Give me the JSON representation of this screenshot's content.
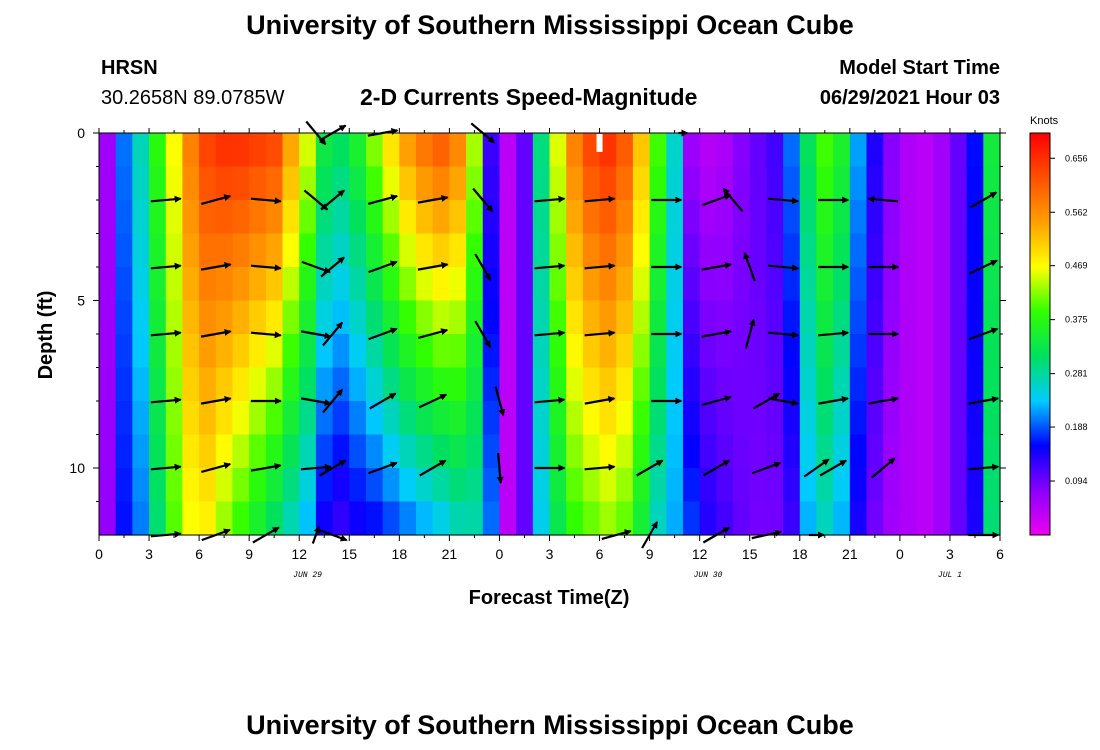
{
  "header": {
    "title": "University of Southern Mississippi Ocean Cube",
    "station": "HRSN",
    "coords": "30.2658N  89.0785W",
    "subtitle": "2-D Currents Speed-Magnitude",
    "model_label": "Model Start Time",
    "model_time": "06/29/2021 Hour 03"
  },
  "footer": {
    "title": "University of Southern Mississippi Ocean Cube"
  },
  "colors": {
    "colormap": [
      "#ee00ee",
      "#8a00ff",
      "#0000ff",
      "#00ccff",
      "#00e060",
      "#30ff00",
      "#ffff00",
      "#ffa000",
      "#ff5000",
      "#ff0000"
    ],
    "arrow": "#000000",
    "marker": "#ffffff"
  },
  "chart_data": {
    "type": "heatmap",
    "title": "2-D Currents Speed-Magnitude",
    "xlabel": "Forecast Time(Z)",
    "ylabel": "Depth (ft)",
    "xlim": [
      0,
      54
    ],
    "ylim": [
      0,
      12
    ],
    "x_ticks": [
      0,
      3,
      6,
      9,
      12,
      15,
      18,
      21,
      24,
      27,
      30,
      33,
      36,
      39,
      42,
      45,
      48,
      51,
      54
    ],
    "x_tick_labels": [
      "0",
      "3",
      "6",
      "9",
      "12",
      "15",
      "18",
      "21",
      "0",
      "3",
      "6",
      "9",
      "12",
      "15",
      "18",
      "21",
      "0",
      "3",
      "6"
    ],
    "y_ticks": [
      0,
      5,
      10
    ],
    "y_tick_labels": [
      "0",
      "5",
      "10"
    ],
    "date_labels": [
      {
        "x": 12.5,
        "label": "JUN 29"
      },
      {
        "x": 36.5,
        "label": "JUN 30"
      },
      {
        "x": 51,
        "label": "JUL 1"
      }
    ],
    "colorbar": {
      "unit": "Knots",
      "ticks": [
        0.656,
        0.562,
        0.469,
        0.375,
        0.281,
        0.188,
        0.094
      ],
      "vmin": 0.0,
      "vmax": 0.7
    },
    "speed_grid": {
      "time_step": 1,
      "depth_step": 1,
      "profiles": [
        {
          "t": 0,
          "top": 0.06,
          "bottom": 0.07
        },
        {
          "t": 1,
          "top": 0.2,
          "bottom": 0.16
        },
        {
          "t": 2,
          "top": 0.27,
          "bottom": 0.2
        },
        {
          "t": 3,
          "top": 0.38,
          "bottom": 0.3
        },
        {
          "t": 4,
          "top": 0.47,
          "bottom": 0.4
        },
        {
          "t": 5,
          "top": 0.58,
          "bottom": 0.46
        },
        {
          "t": 6,
          "top": 0.64,
          "bottom": 0.47
        },
        {
          "t": 7,
          "top": 0.66,
          "bottom": 0.42
        },
        {
          "t": 8,
          "top": 0.66,
          "bottom": 0.38
        },
        {
          "t": 9,
          "top": 0.65,
          "bottom": 0.34
        },
        {
          "t": 10,
          "top": 0.64,
          "bottom": 0.3
        },
        {
          "t": 11,
          "top": 0.55,
          "bottom": 0.26
        },
        {
          "t": 12,
          "top": 0.46,
          "bottom": 0.22
        },
        {
          "t": 13,
          "top": 0.34,
          "bottom": 0.14
        },
        {
          "t": 14,
          "top": 0.32,
          "bottom": 0.12
        },
        {
          "t": 15,
          "top": 0.36,
          "bottom": 0.14
        },
        {
          "t": 16,
          "top": 0.43,
          "bottom": 0.15
        },
        {
          "t": 17,
          "top": 0.5,
          "bottom": 0.17
        },
        {
          "t": 18,
          "top": 0.56,
          "bottom": 0.19
        },
        {
          "t": 19,
          "top": 0.6,
          "bottom": 0.21
        },
        {
          "t": 20,
          "top": 0.62,
          "bottom": 0.23
        },
        {
          "t": 21,
          "top": 0.58,
          "bottom": 0.26
        },
        {
          "t": 22,
          "top": 0.44,
          "bottom": 0.27
        },
        {
          "t": 23,
          "top": 0.12,
          "bottom": 0.2
        },
        {
          "t": 24,
          "top": 0.04,
          "bottom": 0.04
        },
        {
          "t": 25,
          "top": 0.1,
          "bottom": 0.1
        },
        {
          "t": 26,
          "top": 0.3,
          "bottom": 0.24
        },
        {
          "t": 27,
          "top": 0.46,
          "bottom": 0.32
        },
        {
          "t": 28,
          "top": 0.58,
          "bottom": 0.38
        },
        {
          "t": 29,
          "top": 0.64,
          "bottom": 0.4
        },
        {
          "t": 30,
          "top": 0.66,
          "bottom": 0.42
        },
        {
          "t": 31,
          "top": 0.62,
          "bottom": 0.4
        },
        {
          "t": 32,
          "top": 0.52,
          "bottom": 0.34
        },
        {
          "t": 33,
          "top": 0.4,
          "bottom": 0.26
        },
        {
          "t": 34,
          "top": 0.26,
          "bottom": 0.22
        },
        {
          "t": 35,
          "top": 0.06,
          "bottom": 0.18
        },
        {
          "t": 36,
          "top": 0.04,
          "bottom": 0.14
        },
        {
          "t": 37,
          "top": 0.05,
          "bottom": 0.12
        },
        {
          "t": 38,
          "top": 0.08,
          "bottom": 0.1
        },
        {
          "t": 39,
          "top": 0.1,
          "bottom": 0.09
        },
        {
          "t": 40,
          "top": 0.12,
          "bottom": 0.09
        },
        {
          "t": 41,
          "top": 0.2,
          "bottom": 0.12
        },
        {
          "t": 42,
          "top": 0.32,
          "bottom": 0.22
        },
        {
          "t": 43,
          "top": 0.4,
          "bottom": 0.26
        },
        {
          "t": 44,
          "top": 0.36,
          "bottom": 0.22
        },
        {
          "t": 45,
          "top": 0.22,
          "bottom": 0.14
        },
        {
          "t": 46,
          "top": 0.14,
          "bottom": 0.09
        },
        {
          "t": 47,
          "top": 0.08,
          "bottom": 0.06
        },
        {
          "t": 48,
          "top": 0.05,
          "bottom": 0.05
        },
        {
          "t": 49,
          "top": 0.04,
          "bottom": 0.04
        },
        {
          "t": 50,
          "top": 0.06,
          "bottom": 0.06
        },
        {
          "t": 51,
          "top": 0.1,
          "bottom": 0.1
        },
        {
          "t": 52,
          "top": 0.16,
          "bottom": 0.14
        },
        {
          "t": 53,
          "top": 0.34,
          "bottom": 0.3
        }
      ]
    },
    "vectors": [
      {
        "t": 4,
        "d": 12,
        "dir": 5,
        "mag": 1
      },
      {
        "t": 7,
        "d": 12,
        "dir": 20,
        "mag": 1
      },
      {
        "t": 10,
        "d": 12,
        "dir": 30,
        "mag": 1
      },
      {
        "t": 13,
        "d": 12,
        "dir": 70,
        "mag": 0.6
      },
      {
        "t": 14,
        "d": 12,
        "dir": -20,
        "mag": 1
      },
      {
        "t": 31,
        "d": 12,
        "dir": 15,
        "mag": 1
      },
      {
        "t": 33,
        "d": 12,
        "dir": 60,
        "mag": 1
      },
      {
        "t": 37,
        "d": 12,
        "dir": 30,
        "mag": 1
      },
      {
        "t": 40,
        "d": 12,
        "dir": 12,
        "mag": 1
      },
      {
        "t": 43,
        "d": 12,
        "dir": 0,
        "mag": 0.5
      },
      {
        "t": 53,
        "d": 12,
        "dir": 0,
        "mag": 1
      },
      {
        "t": 4,
        "d": 10,
        "dir": 5,
        "mag": 1
      },
      {
        "t": 7,
        "d": 10,
        "dir": 15,
        "mag": 1
      },
      {
        "t": 10,
        "d": 10,
        "dir": 10,
        "mag": 1
      },
      {
        "t": 13,
        "d": 10,
        "dir": 5,
        "mag": 1
      },
      {
        "t": 14,
        "d": 10,
        "dir": 30,
        "mag": 1
      },
      {
        "t": 17,
        "d": 10,
        "dir": 20,
        "mag": 1
      },
      {
        "t": 20,
        "d": 10,
        "dir": 30,
        "mag": 1
      },
      {
        "t": 24,
        "d": 10,
        "dir": -85,
        "mag": 1
      },
      {
        "t": 27,
        "d": 10,
        "dir": 0,
        "mag": 1
      },
      {
        "t": 30,
        "d": 10,
        "dir": 5,
        "mag": 1
      },
      {
        "t": 33,
        "d": 10,
        "dir": 30,
        "mag": 1
      },
      {
        "t": 37,
        "d": 10,
        "dir": 30,
        "mag": 1
      },
      {
        "t": 40,
        "d": 10,
        "dir": 20,
        "mag": 1
      },
      {
        "t": 43,
        "d": 10,
        "dir": 35,
        "mag": 1
      },
      {
        "t": 44,
        "d": 10,
        "dir": 30,
        "mag": 1
      },
      {
        "t": 47,
        "d": 10,
        "dir": 40,
        "mag": 1
      },
      {
        "t": 53,
        "d": 10,
        "dir": 5,
        "mag": 1
      },
      {
        "t": 4,
        "d": 8,
        "dir": 5,
        "mag": 1
      },
      {
        "t": 7,
        "d": 8,
        "dir": 10,
        "mag": 1
      },
      {
        "t": 10,
        "d": 8,
        "dir": 0,
        "mag": 1
      },
      {
        "t": 13,
        "d": 8,
        "dir": -10,
        "mag": 1
      },
      {
        "t": 14,
        "d": 8,
        "dir": 50,
        "mag": 1
      },
      {
        "t": 17,
        "d": 8,
        "dir": 30,
        "mag": 1
      },
      {
        "t": 20,
        "d": 8,
        "dir": 25,
        "mag": 1
      },
      {
        "t": 24,
        "d": 8,
        "dir": -75,
        "mag": 1
      },
      {
        "t": 27,
        "d": 8,
        "dir": 5,
        "mag": 1
      },
      {
        "t": 30,
        "d": 8,
        "dir": 10,
        "mag": 1
      },
      {
        "t": 34,
        "d": 8,
        "dir": 0,
        "mag": 1
      },
      {
        "t": 37,
        "d": 8,
        "dir": 15,
        "mag": 1
      },
      {
        "t": 40,
        "d": 8,
        "dir": 30,
        "mag": 1
      },
      {
        "t": 41,
        "d": 8,
        "dir": -10,
        "mag": 1
      },
      {
        "t": 44,
        "d": 8,
        "dir": 10,
        "mag": 1
      },
      {
        "t": 47,
        "d": 8,
        "dir": 10,
        "mag": 1
      },
      {
        "t": 53,
        "d": 8,
        "dir": 10,
        "mag": 1
      },
      {
        "t": 4,
        "d": 6,
        "dir": 5,
        "mag": 1
      },
      {
        "t": 7,
        "d": 6,
        "dir": 10,
        "mag": 1
      },
      {
        "t": 10,
        "d": 6,
        "dir": -5,
        "mag": 1
      },
      {
        "t": 13,
        "d": 6,
        "dir": -10,
        "mag": 1
      },
      {
        "t": 14,
        "d": 6,
        "dir": 50,
        "mag": 1
      },
      {
        "t": 17,
        "d": 6,
        "dir": 20,
        "mag": 1
      },
      {
        "t": 20,
        "d": 6,
        "dir": 15,
        "mag": 1
      },
      {
        "t": 23,
        "d": 6,
        "dir": -60,
        "mag": 1
      },
      {
        "t": 27,
        "d": 6,
        "dir": 5,
        "mag": 1
      },
      {
        "t": 30,
        "d": 6,
        "dir": 5,
        "mag": 1
      },
      {
        "t": 34,
        "d": 6,
        "dir": 0,
        "mag": 1
      },
      {
        "t": 37,
        "d": 6,
        "dir": 10,
        "mag": 1
      },
      {
        "t": 39,
        "d": 6,
        "dir": 75,
        "mag": 1
      },
      {
        "t": 41,
        "d": 6,
        "dir": -5,
        "mag": 1
      },
      {
        "t": 44,
        "d": 6,
        "dir": 5,
        "mag": 1
      },
      {
        "t": 47,
        "d": 6,
        "dir": 0,
        "mag": 1
      },
      {
        "t": 53,
        "d": 6,
        "dir": 20,
        "mag": 1
      },
      {
        "t": 4,
        "d": 4,
        "dir": 5,
        "mag": 1
      },
      {
        "t": 7,
        "d": 4,
        "dir": 10,
        "mag": 1
      },
      {
        "t": 10,
        "d": 4,
        "dir": -5,
        "mag": 1
      },
      {
        "t": 13,
        "d": 4,
        "dir": -20,
        "mag": 1
      },
      {
        "t": 14,
        "d": 4,
        "dir": 40,
        "mag": 1
      },
      {
        "t": 17,
        "d": 4,
        "dir": 20,
        "mag": 1
      },
      {
        "t": 20,
        "d": 4,
        "dir": 10,
        "mag": 1
      },
      {
        "t": 23,
        "d": 4,
        "dir": -60,
        "mag": 1
      },
      {
        "t": 27,
        "d": 4,
        "dir": 5,
        "mag": 1
      },
      {
        "t": 30,
        "d": 4,
        "dir": 5,
        "mag": 1
      },
      {
        "t": 34,
        "d": 4,
        "dir": 0,
        "mag": 1
      },
      {
        "t": 37,
        "d": 4,
        "dir": 10,
        "mag": 1
      },
      {
        "t": 39,
        "d": 4,
        "dir": 110,
        "mag": 1
      },
      {
        "t": 41,
        "d": 4,
        "dir": -5,
        "mag": 1
      },
      {
        "t": 44,
        "d": 4,
        "dir": 0,
        "mag": 1
      },
      {
        "t": 47,
        "d": 4,
        "dir": 0,
        "mag": 1
      },
      {
        "t": 53,
        "d": 4,
        "dir": 25,
        "mag": 1
      },
      {
        "t": 4,
        "d": 2,
        "dir": 5,
        "mag": 1
      },
      {
        "t": 7,
        "d": 2,
        "dir": 15,
        "mag": 1
      },
      {
        "t": 10,
        "d": 2,
        "dir": -5,
        "mag": 1
      },
      {
        "t": 13,
        "d": 2,
        "dir": -40,
        "mag": 1
      },
      {
        "t": 14,
        "d": 2,
        "dir": 40,
        "mag": 1
      },
      {
        "t": 17,
        "d": 2,
        "dir": 15,
        "mag": 1
      },
      {
        "t": 20,
        "d": 2,
        "dir": 10,
        "mag": 1
      },
      {
        "t": 23,
        "d": 2,
        "dir": -50,
        "mag": 1
      },
      {
        "t": 27,
        "d": 2,
        "dir": 5,
        "mag": 1
      },
      {
        "t": 30,
        "d": 2,
        "dir": 5,
        "mag": 1
      },
      {
        "t": 34,
        "d": 2,
        "dir": 0,
        "mag": 1
      },
      {
        "t": 37,
        "d": 2,
        "dir": 20,
        "mag": 1
      },
      {
        "t": 38,
        "d": 2,
        "dir": 130,
        "mag": 1
      },
      {
        "t": 41,
        "d": 2,
        "dir": -5,
        "mag": 1
      },
      {
        "t": 44,
        "d": 2,
        "dir": 0,
        "mag": 1
      },
      {
        "t": 47,
        "d": 2,
        "dir": 175,
        "mag": 1
      },
      {
        "t": 53,
        "d": 2,
        "dir": 30,
        "mag": 1
      },
      {
        "t": 13,
        "d": 0,
        "dir": -50,
        "mag": 1
      },
      {
        "t": 14,
        "d": 0,
        "dir": 30,
        "mag": 1
      },
      {
        "t": 17,
        "d": 0,
        "dir": 10,
        "mag": 1
      },
      {
        "t": 23,
        "d": 0,
        "dir": -40,
        "mag": 1
      },
      {
        "t": 35,
        "d": 0,
        "dir": 0,
        "mag": 0.3
      }
    ],
    "marker": {
      "t": 30,
      "d": 0
    }
  }
}
